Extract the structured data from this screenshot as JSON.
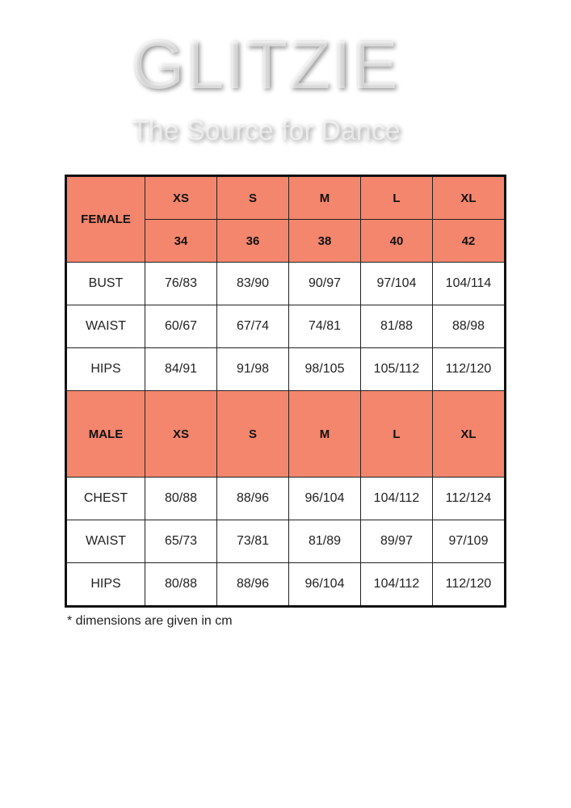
{
  "female": {
    "label": "FEMALE",
    "sizes": [
      "XS",
      "S",
      "M",
      "L",
      "XL"
    ],
    "numbers": [
      "34",
      "36",
      "38",
      "40",
      "42"
    ],
    "rows": [
      {
        "label": "BUST",
        "values": [
          "76/83",
          "83/90",
          "90/97",
          "97/104",
          "104/114"
        ]
      },
      {
        "label": "WAIST",
        "values": [
          "60/67",
          "67/74",
          "74/81",
          "81/88",
          "88/98"
        ]
      },
      {
        "label": "HIPS",
        "values": [
          "84/91",
          "91/98",
          "98/105",
          "105/112",
          "112/120"
        ]
      }
    ]
  },
  "male": {
    "label": "MALE",
    "sizes": [
      "XS",
      "S",
      "M",
      "L",
      "XL"
    ],
    "rows": [
      {
        "label": "CHEST",
        "values": [
          "80/88",
          "88/96",
          "96/104",
          "104/112",
          "112/124"
        ]
      },
      {
        "label": "WAIST",
        "values": [
          "65/73",
          "73/81",
          "81/89",
          "89/97",
          "97/109"
        ]
      },
      {
        "label": "HIPS",
        "values": [
          "80/88",
          "88/96",
          "96/104",
          "104/112",
          "112/120"
        ]
      }
    ]
  },
  "note": "* dimensions are given in cm",
  "watermark": {
    "brand": "GLITZIE",
    "tagline": "The Source for Dance"
  },
  "colors": {
    "header": "#f4866e"
  }
}
